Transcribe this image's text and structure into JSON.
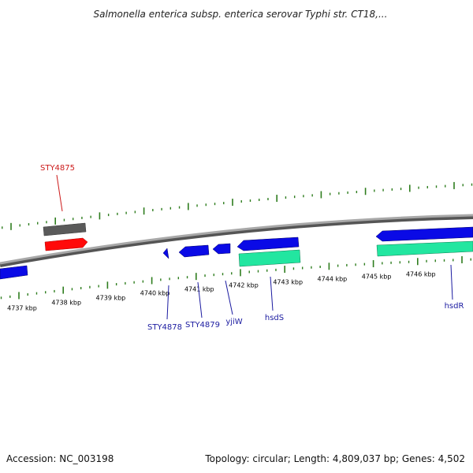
{
  "title": "Salmonella enterica subsp. enterica serovar Typhi str. CT18,...",
  "footer": {
    "accession": "Accession: NC_003198",
    "topology": "Topology: circular; Length: 4,809,037 bp; Genes: 4,502"
  },
  "colors": {
    "backbone": "#8a8a8a",
    "tick": "#2e7d1e",
    "cds_forward": "#0a0ae6",
    "cds_reverse": "#0a0ae6",
    "gene_red": "#ff0a0a",
    "gene_gray": "#5a5a5a",
    "gene_teal": "#22e6a0",
    "label_blue": "#1a1aa0",
    "label_red": "#cc1a1a"
  },
  "scale": {
    "unit": "kbp",
    "labels": [
      "4737 kbp",
      "4738 kbp",
      "4739 kbp",
      "4740 kbp",
      "4741 kbp",
      "4742 kbp",
      "4743 kbp",
      "4744 kbp",
      "4745 kbp",
      "4746 kbp"
    ]
  },
  "gene_labels": [
    "STY4875",
    "STY4878",
    "STY4879",
    "yjiW",
    "hsdS",
    "hsdR"
  ]
}
